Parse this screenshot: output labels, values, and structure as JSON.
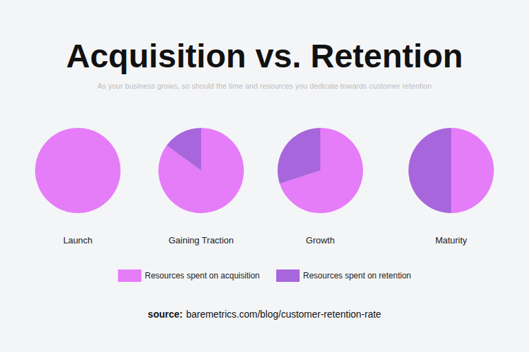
{
  "chart_data": {
    "type": "pie",
    "title": "Acquisition vs. Retention",
    "subtitle": "As your business grows, so should the time and resources you dedicate towards customer retention",
    "categories": [
      "Launch",
      "Gaining Traction",
      "Growth",
      "Maturity"
    ],
    "series": [
      {
        "name": "Resources spent on acquisition",
        "color": "#e57cf8",
        "values": [
          100,
          85,
          70,
          50
        ]
      },
      {
        "name": "Resources spent on retention",
        "color": "#a866dc",
        "values": [
          0,
          15,
          30,
          50
        ]
      }
    ],
    "legend": "bottom",
    "data_labels": false,
    "source": {
      "label": "source:",
      "text": "baremetrics.com/blog/customer-retention-rate"
    }
  }
}
